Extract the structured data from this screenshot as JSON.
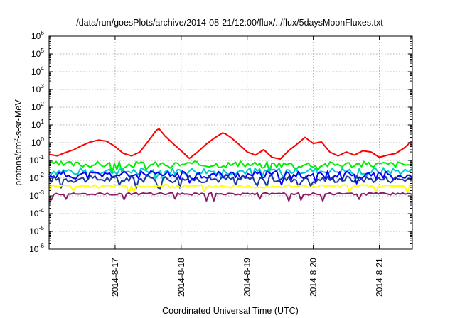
{
  "chart_data": {
    "type": "line",
    "title": "/data/run/goesPlots/archive/2014-08-21/12:00/flux/../flux/5daysMoonFluxes.txt",
    "xlabel": "Coordinated Universal Time (UTC)",
    "ylabel": {
      "prefix": "protons/cm",
      "sup": "2",
      "suffix": "-s-sr-MeV"
    },
    "y_scale": "log",
    "ylim": [
      1e-06,
      1000000.0
    ],
    "y_ticks": [
      {
        "base": "10",
        "exp": "-6",
        "value": 1e-06
      },
      {
        "base": "10",
        "exp": "-5",
        "value": 1e-05
      },
      {
        "base": "10",
        "exp": "-4",
        "value": 0.0001
      },
      {
        "base": "10",
        "exp": "-3",
        "value": 0.001
      },
      {
        "base": "10",
        "exp": "-2",
        "value": 0.01
      },
      {
        "base": "10",
        "exp": "-1",
        "value": 0.1
      },
      {
        "base": "10",
        "exp": "0",
        "value": 1
      },
      {
        "base": "10",
        "exp": "1",
        "value": 10
      },
      {
        "base": "10",
        "exp": "2",
        "value": 100
      },
      {
        "base": "10",
        "exp": "3",
        "value": 1000
      },
      {
        "base": "10",
        "exp": "4",
        "value": 10000
      },
      {
        "base": "10",
        "exp": "5",
        "value": 100000
      },
      {
        "base": "10",
        "exp": "6",
        "value": 1000000
      }
    ],
    "xlim": [
      "2014-08-16 00:00",
      "2014-08-21 12:00"
    ],
    "x_ticks": [
      {
        "label": "2014-8-17",
        "time": "2014-08-17 00:00"
      },
      {
        "label": "2014-8-18",
        "time": "2014-08-18 00:00"
      },
      {
        "label": "2014-8-19",
        "time": "2014-08-19 00:00"
      },
      {
        "label": "2014-8-20",
        "time": "2014-08-20 00:00"
      },
      {
        "label": "2014-8-21",
        "time": "2014-08-21 00:00"
      }
    ],
    "grid": true,
    "legend": "none",
    "series": [
      {
        "color": "#ff0000",
        "points": [
          [
            "2014-08-16 00:00",
            0.22
          ],
          [
            "2014-08-16 03:00",
            0.18
          ],
          [
            "2014-08-16 06:00",
            0.28
          ],
          [
            "2014-08-16 09:00",
            0.4
          ],
          [
            "2014-08-16 12:00",
            0.7
          ],
          [
            "2014-08-16 15:00",
            1.1
          ],
          [
            "2014-08-16 18:00",
            1.4
          ],
          [
            "2014-08-16 21:00",
            1.2
          ],
          [
            "2014-08-17 00:00",
            0.6
          ],
          [
            "2014-08-17 03:00",
            0.25
          ],
          [
            "2014-08-17 06:00",
            0.18
          ],
          [
            "2014-08-17 09:00",
            0.3
          ],
          [
            "2014-08-17 12:00",
            1.2
          ],
          [
            "2014-08-17 15:00",
            5.0
          ],
          [
            "2014-08-17 16:00",
            6.0
          ],
          [
            "2014-08-17 18:00",
            2.5
          ],
          [
            "2014-08-17 21:00",
            0.9
          ],
          [
            "2014-08-18 00:00",
            0.35
          ],
          [
            "2014-08-18 03:00",
            0.13
          ],
          [
            "2014-08-18 06:00",
            0.3
          ],
          [
            "2014-08-18 09:00",
            0.8
          ],
          [
            "2014-08-18 12:00",
            1.8
          ],
          [
            "2014-08-18 15:00",
            3.5
          ],
          [
            "2014-08-18 16:00",
            3.2
          ],
          [
            "2014-08-18 18:00",
            2.0
          ],
          [
            "2014-08-18 21:00",
            0.8
          ],
          [
            "2014-08-19 00:00",
            0.3
          ],
          [
            "2014-08-19 03:00",
            0.2
          ],
          [
            "2014-08-19 06:00",
            0.4
          ],
          [
            "2014-08-19 09:00",
            0.15
          ],
          [
            "2014-08-19 12:00",
            0.12
          ],
          [
            "2014-08-19 15:00",
            0.35
          ],
          [
            "2014-08-19 18:00",
            0.8
          ],
          [
            "2014-08-19 21:00",
            2.0
          ],
          [
            "2014-08-20 00:00",
            0.9
          ],
          [
            "2014-08-20 03:00",
            1.1
          ],
          [
            "2014-08-20 06:00",
            0.3
          ],
          [
            "2014-08-20 09:00",
            0.18
          ],
          [
            "2014-08-20 12:00",
            0.3
          ],
          [
            "2014-08-20 15:00",
            0.2
          ],
          [
            "2014-08-20 18:00",
            0.35
          ],
          [
            "2014-08-20 21:00",
            0.3
          ],
          [
            "2014-08-21 00:00",
            0.15
          ],
          [
            "2014-08-21 03:00",
            0.2
          ],
          [
            "2014-08-21 06:00",
            0.25
          ],
          [
            "2014-08-21 09:00",
            0.5
          ],
          [
            "2014-08-21 12:00",
            1.3
          ]
        ]
      },
      {
        "color": "#00ee00",
        "base": 0.06,
        "amp": 1.5,
        "seed": 3
      },
      {
        "color": "#00cccc",
        "base": 0.025,
        "amp": 1.6,
        "seed": 7
      },
      {
        "color": "#0000ff",
        "base": 0.015,
        "amp": 1.7,
        "seed": 11
      },
      {
        "color": "#1a3a9e",
        "base": 0.009,
        "amp": 1.6,
        "seed": 17
      },
      {
        "color": "#ffff00",
        "base": 0.0035,
        "amp": 1.25,
        "seed": 23
      },
      {
        "color": "#8b1a6b",
        "base": 0.0013,
        "amp": 1.15,
        "seed": 29
      }
    ]
  }
}
